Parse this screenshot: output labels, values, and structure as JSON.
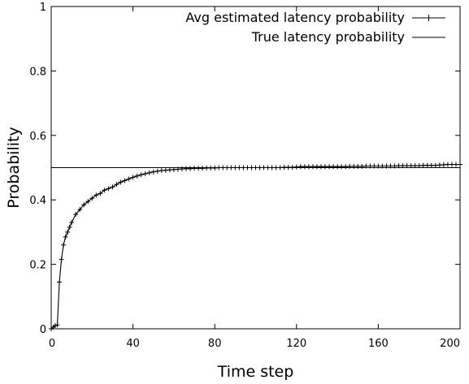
{
  "chart_data": {
    "type": "line",
    "title": "",
    "xlabel": "Time step",
    "ylabel": "Probability",
    "xlim": [
      0,
      200
    ],
    "ylim": [
      0,
      1
    ],
    "xticks": [
      "0",
      "40",
      "80",
      "120",
      "160",
      "200"
    ],
    "yticks": [
      "0",
      "0.2",
      "0.4",
      "0.6",
      "0.8",
      "1"
    ],
    "grid": false,
    "legend_position": "top-right",
    "series": [
      {
        "name": "Avg estimated latency probability",
        "marker": "plus",
        "color": "#000000",
        "x": [
          0,
          1,
          2,
          3,
          4,
          5,
          6,
          7,
          8,
          9,
          10,
          12,
          14,
          16,
          18,
          20,
          22,
          24,
          26,
          28,
          30,
          32,
          34,
          36,
          38,
          40,
          42,
          44,
          46,
          48,
          50,
          52,
          54,
          56,
          58,
          60,
          62,
          64,
          66,
          68,
          70,
          72,
          74,
          76,
          78,
          80,
          82,
          84,
          86,
          88,
          90,
          92,
          94,
          96,
          98,
          100,
          102,
          104,
          106,
          108,
          110,
          112,
          114,
          116,
          118,
          120,
          122,
          124,
          126,
          128,
          130,
          132,
          134,
          136,
          138,
          140,
          142,
          144,
          146,
          148,
          150,
          152,
          154,
          156,
          158,
          160,
          162,
          164,
          166,
          168,
          170,
          172,
          174,
          176,
          178,
          180,
          182,
          184,
          186,
          188,
          190,
          192,
          194,
          196,
          198,
          200
        ],
        "y": [
          0.0,
          0.005,
          0.01,
          0.012,
          0.145,
          0.215,
          0.26,
          0.285,
          0.3,
          0.315,
          0.33,
          0.355,
          0.37,
          0.385,
          0.395,
          0.405,
          0.415,
          0.42,
          0.43,
          0.435,
          0.44,
          0.448,
          0.455,
          0.46,
          0.465,
          0.47,
          0.474,
          0.478,
          0.481,
          0.484,
          0.487,
          0.489,
          0.491,
          0.492,
          0.493,
          0.494,
          0.495,
          0.496,
          0.497,
          0.497,
          0.498,
          0.498,
          0.498,
          0.499,
          0.499,
          0.499,
          0.5,
          0.5,
          0.5,
          0.5,
          0.5,
          0.5,
          0.5,
          0.5,
          0.5,
          0.5,
          0.5,
          0.5,
          0.5,
          0.5,
          0.5,
          0.5,
          0.501,
          0.501,
          0.501,
          0.502,
          0.503,
          0.503,
          0.503,
          0.503,
          0.503,
          0.503,
          0.503,
          0.503,
          0.503,
          0.503,
          0.503,
          0.503,
          0.504,
          0.504,
          0.504,
          0.504,
          0.505,
          0.505,
          0.505,
          0.505,
          0.505,
          0.505,
          0.505,
          0.505,
          0.506,
          0.506,
          0.506,
          0.506,
          0.506,
          0.506,
          0.507,
          0.507,
          0.507,
          0.507,
          0.508,
          0.509,
          0.51,
          0.51,
          0.51,
          0.51
        ]
      },
      {
        "name": "True latency probability",
        "marker": "none",
        "color": "#000000",
        "x": [
          0,
          200
        ],
        "y": [
          0.5,
          0.5
        ]
      }
    ]
  }
}
